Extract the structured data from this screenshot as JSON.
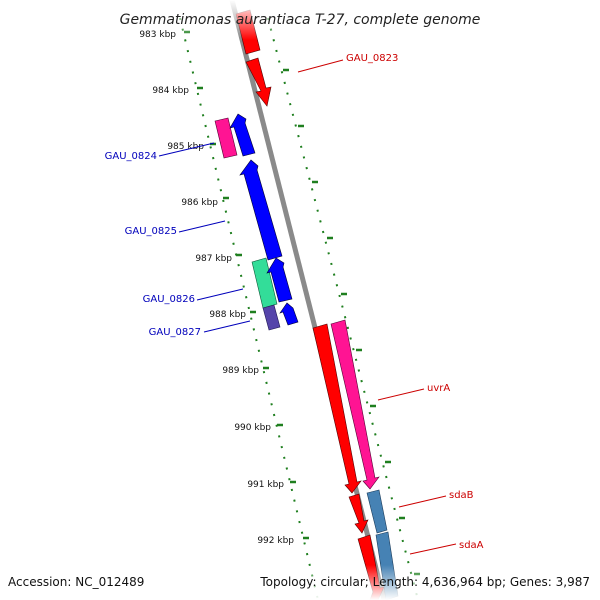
{
  "title": "Gemmatimonas aurantiaca T-27, complete genome",
  "accession_text": "Accession: NC_012489",
  "topology_text": "Topology: circular; Length: 4,636,964 bp; Genes: 3,987",
  "ticks": [
    "983 kbp",
    "984 kbp",
    "985 kbp",
    "986 kbp",
    "987 kbp",
    "988 kbp",
    "989 kbp",
    "990 kbp",
    "991 kbp",
    "992 kbp"
  ],
  "labels": {
    "gau_0823": "GAU_0823",
    "gau_0824": "GAU_0824",
    "gau_0825": "GAU_0825",
    "gau_0826": "GAU_0826",
    "gau_0827": "GAU_0827",
    "uvra": "uvrA",
    "sdab": "sdaB",
    "sdaa": "sdaA"
  },
  "colors": {
    "backbone": "#8a8a8a",
    "tick_mark": "#1f7f1f",
    "forward_label": "#cc0000",
    "reverse_label": "#0000bb",
    "red_gene": "#ff0000",
    "magenta_gene": "#ff1493",
    "blue_gene": "#0000ff",
    "green_gene": "#33dd99",
    "purple_gene": "#5544aa",
    "steelblue_gene": "#4682b4"
  }
}
